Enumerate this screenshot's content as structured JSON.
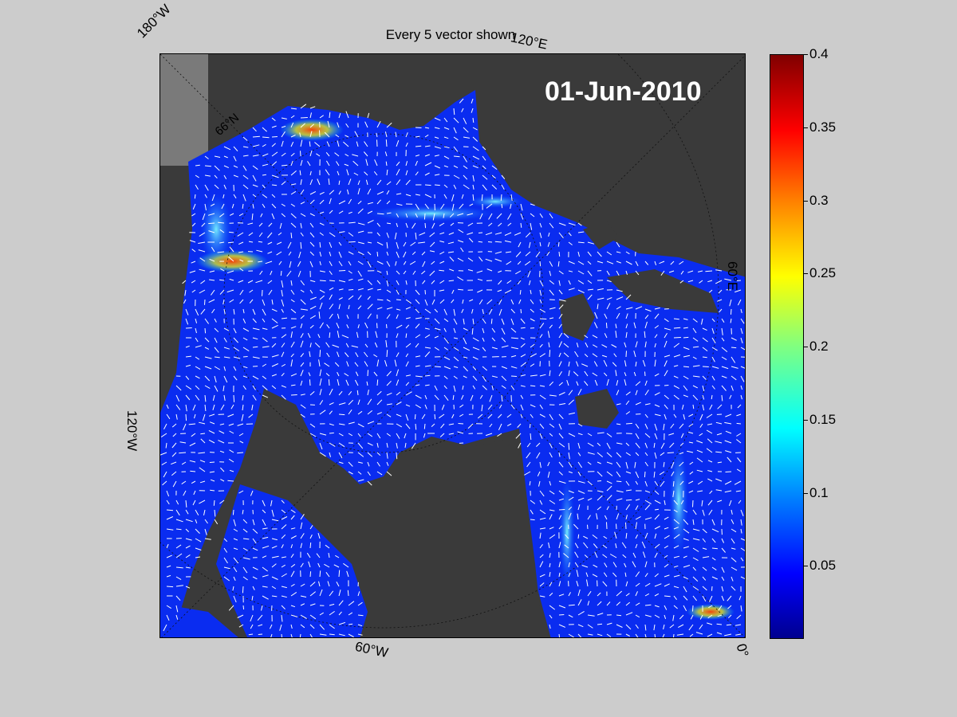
{
  "title": "Every 5 vector shown",
  "date": "01-Jun-2010",
  "graticule_labels": {
    "w180": "180°W",
    "e120": "120°E",
    "e60": "60°E",
    "w120": "120°W",
    "w60": "60°W",
    "zero": "0°",
    "n66": "66°N"
  },
  "colorbar": {
    "min": 0,
    "max": 0.4,
    "ticks": [
      "0.05",
      "0.1",
      "0.15",
      "0.2",
      "0.25",
      "0.3",
      "0.35",
      "0.4"
    ],
    "colormap": "jet"
  },
  "colors": {
    "land": "#3a3a3a",
    "background": "#cccccc",
    "ocean_low": "#0000ff",
    "vectors": "#ffffff"
  }
}
